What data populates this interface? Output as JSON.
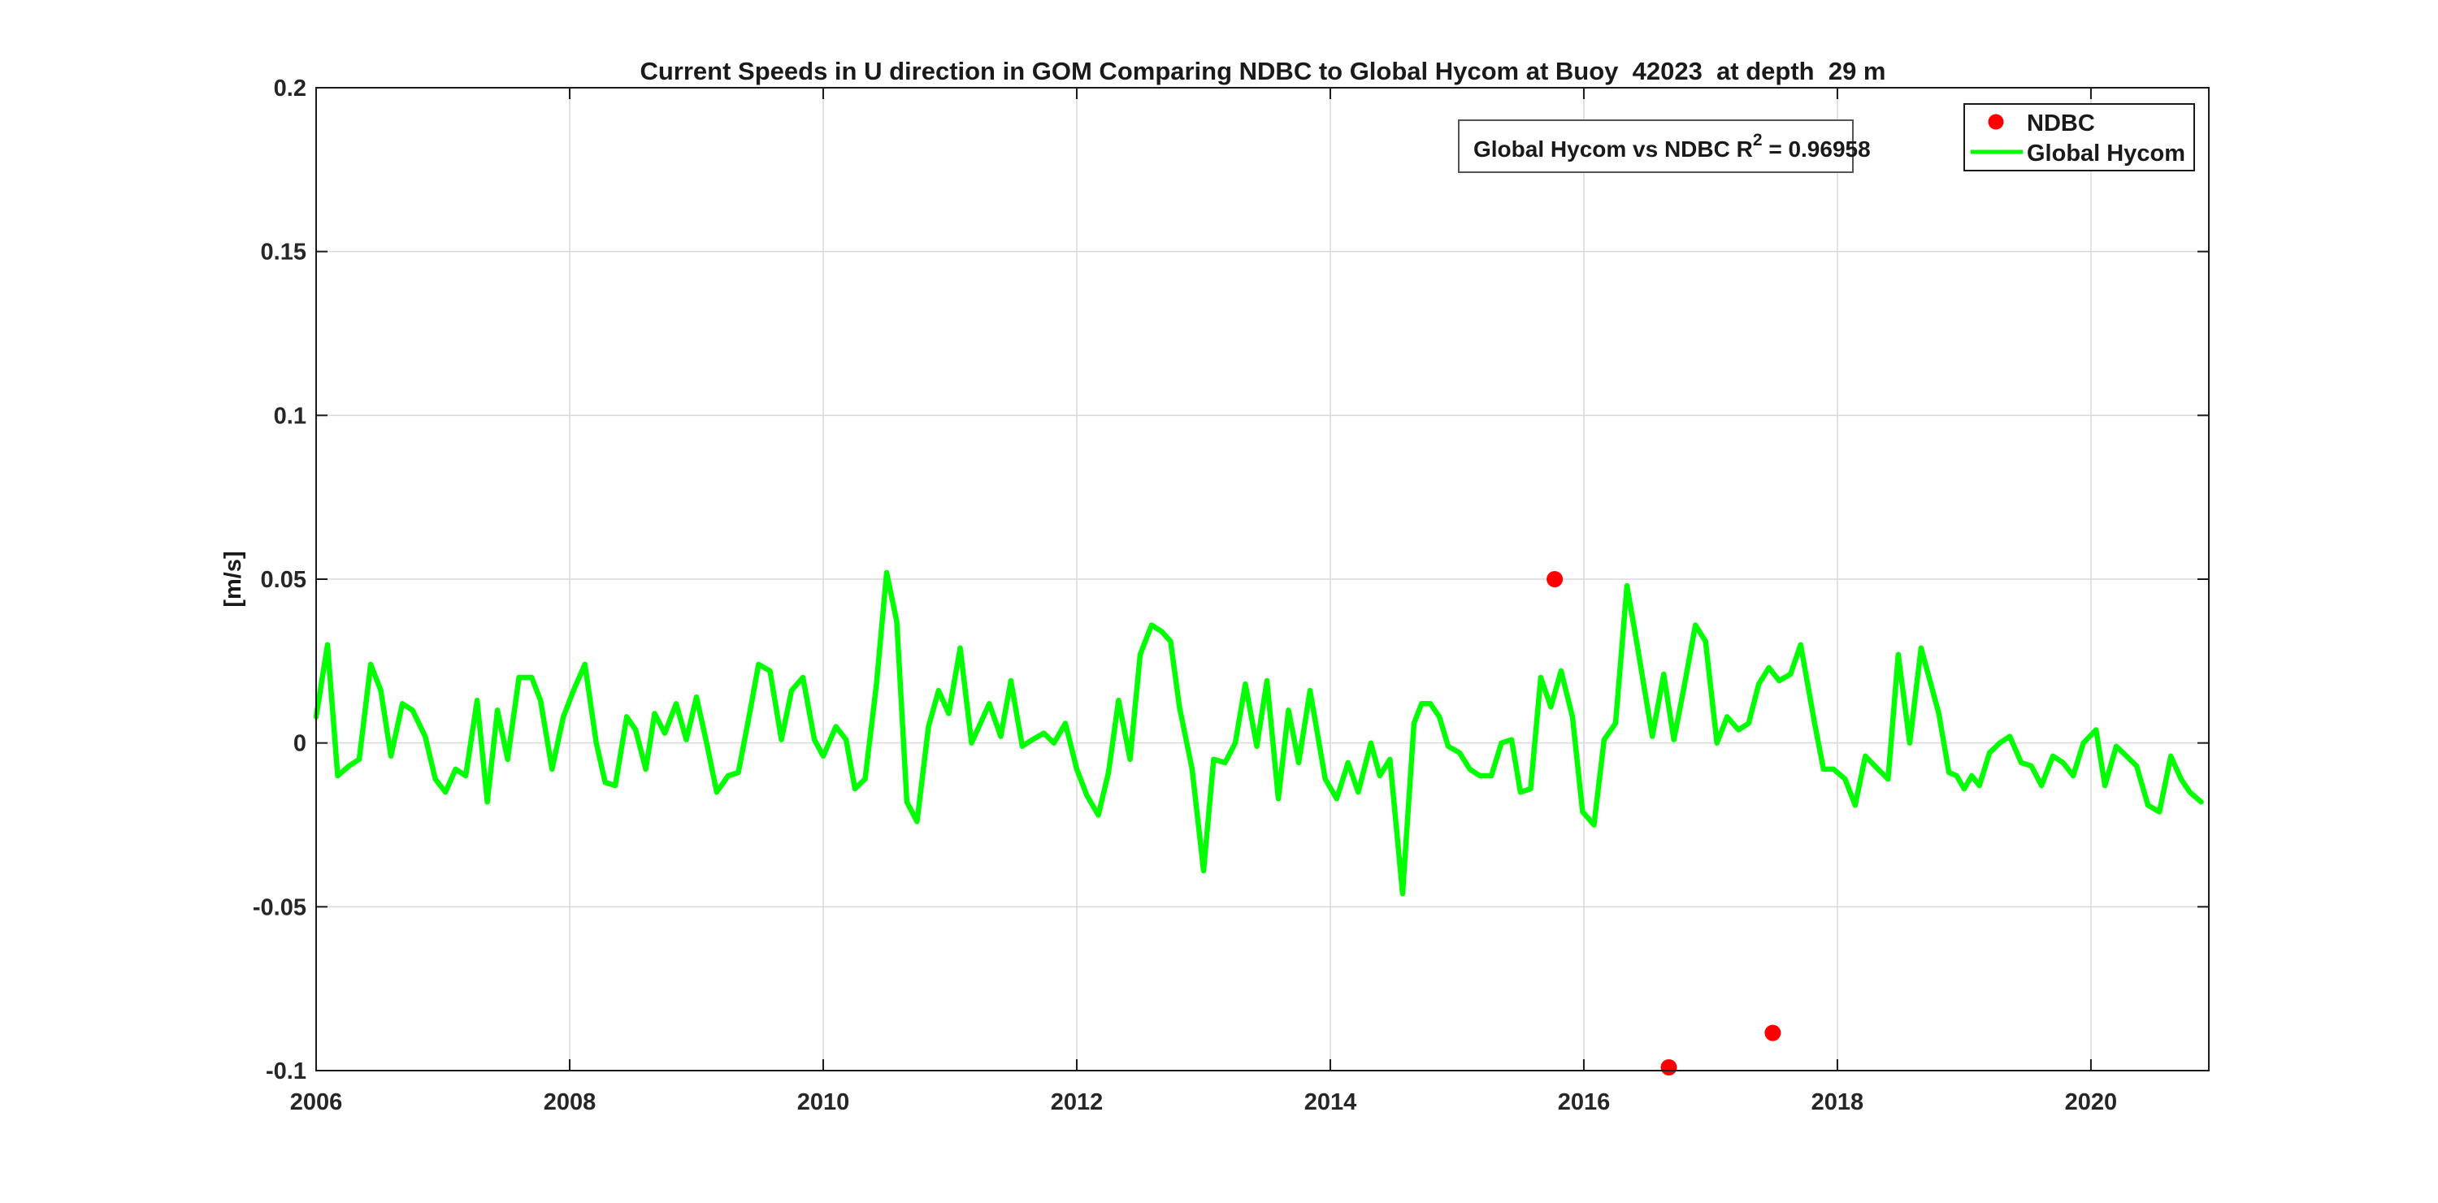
{
  "figure": {
    "background": "#ffffff"
  },
  "chart_data": {
    "type": "line",
    "title": "Current Speeds in U direction in GOM Comparing NDBC to Global Hycom at Buoy  42023  at depth  29 m",
    "ylabel": "[m/s]",
    "xlabel": "",
    "xlim": [
      2006,
      2020.93
    ],
    "ylim": [
      -0.1,
      0.2
    ],
    "grid": true,
    "x_ticks": [
      2006,
      2008,
      2010,
      2012,
      2014,
      2016,
      2018,
      2020
    ],
    "x_tick_labels": [
      "2006",
      "2008",
      "2010",
      "2012",
      "2014",
      "2016",
      "2018",
      "2020"
    ],
    "y_ticks": [
      0.2,
      0.15,
      0.1,
      0.05,
      0,
      -0.05,
      -0.1
    ],
    "y_tick_labels": [
      "0.2",
      "0.15",
      "0.1",
      "0.05",
      "0",
      "-0.05",
      "-0.1"
    ],
    "legend": {
      "position": "top-right",
      "entries": [
        {
          "label": "NDBC",
          "marker": "dot",
          "color": "#ff0000"
        },
        {
          "label": "Global Hycom",
          "marker": "line",
          "color": "#00ff00"
        }
      ]
    },
    "annotation": {
      "prefix": "Global Hycom vs NDBC R",
      "sup": "2",
      "suffix": " = 0.96958"
    },
    "colors": {
      "ndbc": "#ff0000",
      "hycom": "#00ff00",
      "grid": "#d9d9d9",
      "axis": "#1a1a1a"
    },
    "series": [
      {
        "name": "NDBC",
        "type": "scatter",
        "points": [
          [
            2015.77,
            0.05
          ],
          [
            2016.67,
            -0.099
          ],
          [
            2017.49,
            -0.0885
          ]
        ]
      },
      {
        "name": "Global Hycom",
        "type": "line",
        "points": [
          [
            2006.0,
            0.008
          ],
          [
            2006.09,
            0.03
          ],
          [
            2006.17,
            -0.01
          ],
          [
            2006.26,
            -0.007
          ],
          [
            2006.34,
            -0.005
          ],
          [
            2006.43,
            0.024
          ],
          [
            2006.51,
            0.016
          ],
          [
            2006.59,
            -0.004
          ],
          [
            2006.68,
            0.012
          ],
          [
            2006.76,
            0.01
          ],
          [
            2006.86,
            0.002
          ],
          [
            2006.94,
            -0.011
          ],
          [
            2007.02,
            -0.015
          ],
          [
            2007.1,
            -0.008
          ],
          [
            2007.18,
            -0.01
          ],
          [
            2007.27,
            0.013
          ],
          [
            2007.35,
            -0.018
          ],
          [
            2007.43,
            0.01
          ],
          [
            2007.51,
            -0.005
          ],
          [
            2007.6,
            0.02
          ],
          [
            2007.7,
            0.02
          ],
          [
            2007.77,
            0.013
          ],
          [
            2007.86,
            -0.008
          ],
          [
            2007.95,
            0.008
          ],
          [
            2008.03,
            0.016
          ],
          [
            2008.12,
            0.024
          ],
          [
            2008.21,
            0.0
          ],
          [
            2008.28,
            -0.012
          ],
          [
            2008.36,
            -0.013
          ],
          [
            2008.45,
            0.008
          ],
          [
            2008.52,
            0.004
          ],
          [
            2008.6,
            -0.008
          ],
          [
            2008.67,
            0.009
          ],
          [
            2008.75,
            0.003
          ],
          [
            2008.84,
            0.012
          ],
          [
            2008.92,
            0.001
          ],
          [
            2009.0,
            0.014
          ],
          [
            2009.08,
            0.0
          ],
          [
            2009.16,
            -0.015
          ],
          [
            2009.25,
            -0.01
          ],
          [
            2009.33,
            -0.009
          ],
          [
            2009.41,
            0.007
          ],
          [
            2009.49,
            0.024
          ],
          [
            2009.58,
            0.022
          ],
          [
            2009.67,
            0.001
          ],
          [
            2009.75,
            0.016
          ],
          [
            2009.84,
            0.02
          ],
          [
            2009.93,
            0.001
          ],
          [
            2010.0,
            -0.004
          ],
          [
            2010.1,
            0.005
          ],
          [
            2010.18,
            0.001
          ],
          [
            2010.25,
            -0.014
          ],
          [
            2010.33,
            -0.011
          ],
          [
            2010.42,
            0.018
          ],
          [
            2010.5,
            0.052
          ],
          [
            2010.58,
            0.037
          ],
          [
            2010.66,
            -0.018
          ],
          [
            2010.74,
            -0.024
          ],
          [
            2010.83,
            0.005
          ],
          [
            2010.91,
            0.016
          ],
          [
            2010.99,
            0.009
          ],
          [
            2011.08,
            0.029
          ],
          [
            2011.17,
            0.0
          ],
          [
            2011.31,
            0.012
          ],
          [
            2011.4,
            0.002
          ],
          [
            2011.48,
            0.019
          ],
          [
            2011.57,
            -0.001
          ],
          [
            2011.65,
            0.001
          ],
          [
            2011.74,
            0.003
          ],
          [
            2011.82,
            0.0
          ],
          [
            2011.91,
            0.006
          ],
          [
            2012.0,
            -0.008
          ],
          [
            2012.08,
            -0.016
          ],
          [
            2012.17,
            -0.022
          ],
          [
            2012.25,
            -0.009
          ],
          [
            2012.33,
            0.013
          ],
          [
            2012.42,
            -0.005
          ],
          [
            2012.5,
            0.027
          ],
          [
            2012.59,
            0.036
          ],
          [
            2012.67,
            0.034
          ],
          [
            2012.74,
            0.031
          ],
          [
            2012.81,
            0.011
          ],
          [
            2012.91,
            -0.008
          ],
          [
            2013.0,
            -0.039
          ],
          [
            2013.08,
            -0.005
          ],
          [
            2013.17,
            -0.006
          ],
          [
            2013.25,
            0.0
          ],
          [
            2013.33,
            0.018
          ],
          [
            2013.42,
            -0.001
          ],
          [
            2013.5,
            0.019
          ],
          [
            2013.59,
            -0.017
          ],
          [
            2013.67,
            0.01
          ],
          [
            2013.75,
            -0.006
          ],
          [
            2013.84,
            0.016
          ],
          [
            2013.96,
            -0.011
          ],
          [
            2014.05,
            -0.017
          ],
          [
            2014.14,
            -0.006
          ],
          [
            2014.22,
            -0.015
          ],
          [
            2014.32,
            0.0
          ],
          [
            2014.39,
            -0.01
          ],
          [
            2014.47,
            -0.005
          ],
          [
            2014.57,
            -0.046
          ],
          [
            2014.66,
            0.006
          ],
          [
            2014.72,
            0.012
          ],
          [
            2014.79,
            0.012
          ],
          [
            2014.86,
            0.008
          ],
          [
            2014.93,
            -0.001
          ],
          [
            2015.02,
            -0.003
          ],
          [
            2015.1,
            -0.008
          ],
          [
            2015.18,
            -0.01
          ],
          [
            2015.27,
            -0.01
          ],
          [
            2015.35,
            0.0
          ],
          [
            2015.43,
            0.001
          ],
          [
            2015.5,
            -0.015
          ],
          [
            2015.58,
            -0.014
          ],
          [
            2015.66,
            0.02
          ],
          [
            2015.74,
            0.011
          ],
          [
            2015.82,
            0.022
          ],
          [
            2015.91,
            0.008
          ],
          [
            2015.99,
            -0.021
          ],
          [
            2016.08,
            -0.025
          ],
          [
            2016.16,
            0.001
          ],
          [
            2016.25,
            0.006
          ],
          [
            2016.34,
            0.048
          ],
          [
            2016.42,
            0.03
          ],
          [
            2016.54,
            0.002
          ],
          [
            2016.63,
            0.021
          ],
          [
            2016.71,
            0.001
          ],
          [
            2016.79,
            0.017
          ],
          [
            2016.88,
            0.036
          ],
          [
            2016.96,
            0.031
          ],
          [
            2017.05,
            0.0
          ],
          [
            2017.13,
            0.008
          ],
          [
            2017.22,
            0.004
          ],
          [
            2017.3,
            0.006
          ],
          [
            2017.38,
            0.018
          ],
          [
            2017.46,
            0.023
          ],
          [
            2017.54,
            0.019
          ],
          [
            2017.63,
            0.021
          ],
          [
            2017.71,
            0.03
          ],
          [
            2017.82,
            0.006
          ],
          [
            2017.89,
            -0.008
          ],
          [
            2017.97,
            -0.008
          ],
          [
            2018.06,
            -0.011
          ],
          [
            2018.14,
            -0.019
          ],
          [
            2018.22,
            -0.004
          ],
          [
            2018.32,
            -0.008
          ],
          [
            2018.4,
            -0.011
          ],
          [
            2018.48,
            0.027
          ],
          [
            2018.57,
            0.0
          ],
          [
            2018.66,
            0.029
          ],
          [
            2018.8,
            0.009
          ],
          [
            2018.88,
            -0.009
          ],
          [
            2018.94,
            -0.01
          ],
          [
            2019.0,
            -0.014
          ],
          [
            2019.06,
            -0.01
          ],
          [
            2019.12,
            -0.013
          ],
          [
            2019.2,
            -0.003
          ],
          [
            2019.28,
            0.0
          ],
          [
            2019.36,
            0.002
          ],
          [
            2019.45,
            -0.006
          ],
          [
            2019.53,
            -0.007
          ],
          [
            2019.61,
            -0.013
          ],
          [
            2019.7,
            -0.004
          ],
          [
            2019.78,
            -0.006
          ],
          [
            2019.86,
            -0.01
          ],
          [
            2019.94,
            0.0
          ],
          [
            2020.04,
            0.004
          ],
          [
            2020.11,
            -0.013
          ],
          [
            2020.2,
            -0.001
          ],
          [
            2020.28,
            -0.004
          ],
          [
            2020.36,
            -0.007
          ],
          [
            2020.45,
            -0.019
          ],
          [
            2020.54,
            -0.021
          ],
          [
            2020.63,
            -0.004
          ],
          [
            2020.71,
            -0.011
          ],
          [
            2020.78,
            -0.015
          ],
          [
            2020.87,
            -0.018
          ]
        ]
      }
    ]
  }
}
